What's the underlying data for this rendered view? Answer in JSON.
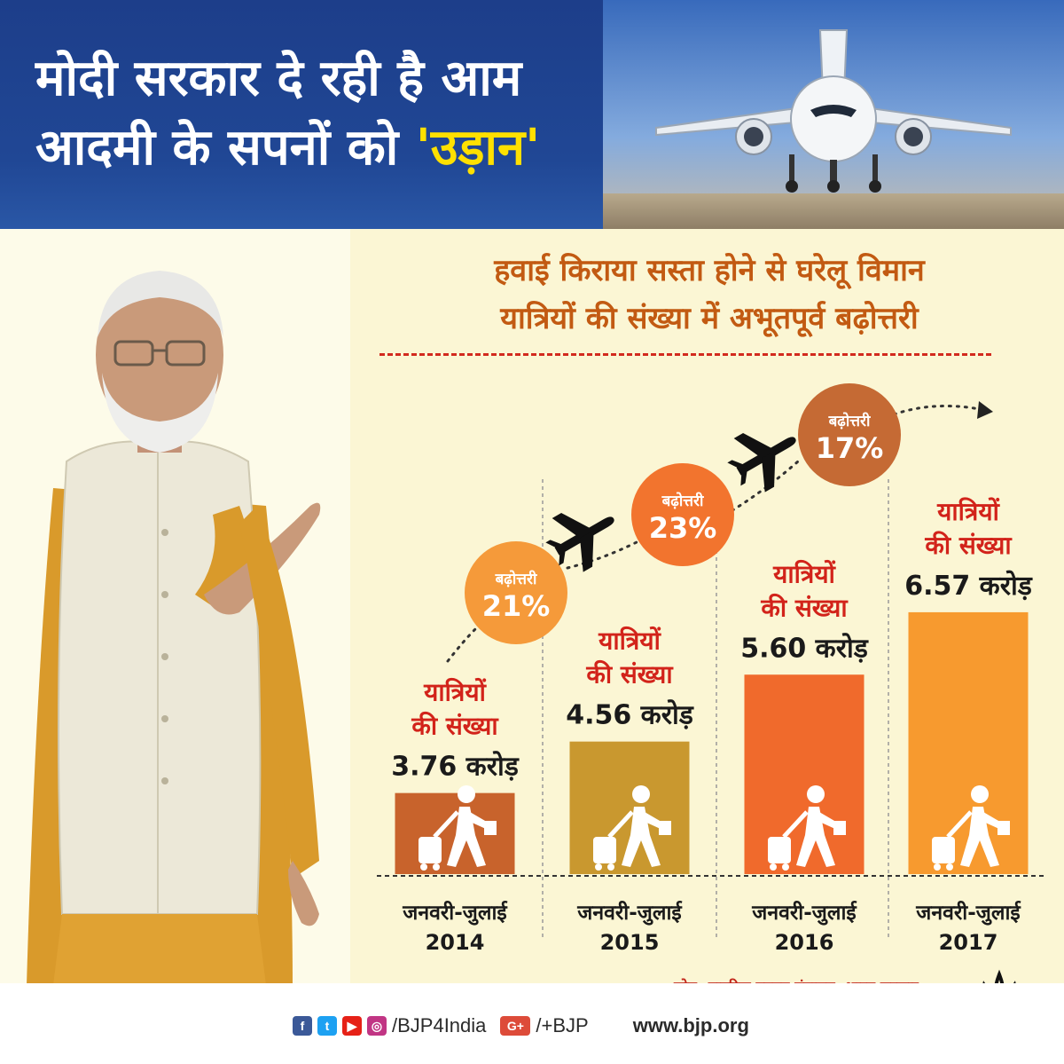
{
  "header": {
    "title_line1": "मोदी सरकार दे रही है आम",
    "title_line2_prefix": "आदमी के सपनों को ",
    "title_highlight": "'उड़ान'"
  },
  "subtitle": {
    "line1": "हवाई किराया सस्ता होने से घरेलू विमान",
    "line2": "यात्रियों की संख्या में अभूतपूर्व बढ़ोत्तरी"
  },
  "chart_data": {
    "type": "bar",
    "title": "हवाई किराया सस्ता होने से घरेलू विमान यात्रियों की संख्या में अभूतपूर्व बढ़ोत्तरी",
    "bar_label_line1": "यात्रियों",
    "bar_label_line2": "की संख्या",
    "categories": [
      {
        "line1": "जनवरी-जुलाई",
        "line2": "2014"
      },
      {
        "line1": "जनवरी-जुलाई",
        "line2": "2015"
      },
      {
        "line1": "जनवरी-जुलाई",
        "line2": "2016"
      },
      {
        "line1": "जनवरी-जुलाई",
        "line2": "2017"
      }
    ],
    "values": [
      3.76,
      4.56,
      5.6,
      6.57
    ],
    "value_labels": [
      "3.76 करोड़",
      "4.56 करोड़",
      "5.60 करोड़",
      "6.57 करोड़"
    ],
    "unit": "करोड़",
    "bar_colors": [
      "#c8632c",
      "#c9982f",
      "#f06a2c",
      "#f79a2f"
    ],
    "growth": [
      {
        "label": "बढ़ोत्तरी",
        "value": "21%",
        "color": "#f59a3a"
      },
      {
        "label": "बढ़ोत्तरी",
        "value": "23%",
        "color": "#f2742e"
      },
      {
        "label": "बढ़ोत्तरी",
        "value": "17%",
        "color": "#c56a34"
      }
    ],
    "ylim": [
      0,
      7.5
    ]
  },
  "source": "स्रोत -नागरिक उड्डयन मंत्रालय ,भारत सरकार",
  "footer": {
    "handle": "/BJP4India",
    "gplus": "/+BJP",
    "website": "www.bjp.org"
  },
  "icons": [
    "airplane-icon",
    "traveler-icon",
    "facebook-icon",
    "twitter-icon",
    "youtube-icon",
    "instagram-icon",
    "google-plus-icon",
    "lotus-logo-icon"
  ]
}
